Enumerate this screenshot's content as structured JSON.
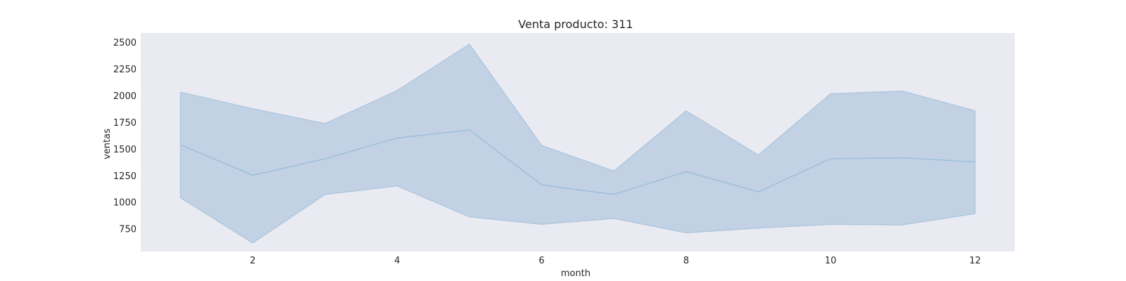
{
  "chart_data": {
    "type": "line",
    "title": "Venta producto: 311",
    "xlabel": "month",
    "ylabel": "ventas",
    "x": [
      1,
      2,
      3,
      4,
      5,
      6,
      7,
      8,
      9,
      10,
      11,
      12
    ],
    "series": [
      {
        "values": [
          1540,
          1255,
          1410,
          1605,
          1680,
          1165,
          1075,
          1290,
          1100,
          1410,
          1420,
          1380
        ],
        "band_upper": [
          2035,
          1880,
          1740,
          2050,
          2485,
          1535,
          1295,
          1860,
          1445,
          2020,
          2045,
          1860
        ],
        "band_lower": [
          1045,
          620,
          1075,
          1155,
          865,
          795,
          850,
          715,
          760,
          795,
          790,
          895
        ]
      }
    ],
    "xlim": [
      0.45,
      12.55
    ],
    "ylim": [
      540,
      2590
    ],
    "x_ticks": [
      2,
      4,
      6,
      8,
      10,
      12
    ],
    "y_ticks": [
      750,
      1000,
      1250,
      1500,
      1750,
      2000,
      2250,
      2500
    ],
    "grid": false,
    "colors": {
      "background": "#eaeaf2",
      "band_fill": "#a9c4dc",
      "line": "#9fbfdb"
    }
  }
}
